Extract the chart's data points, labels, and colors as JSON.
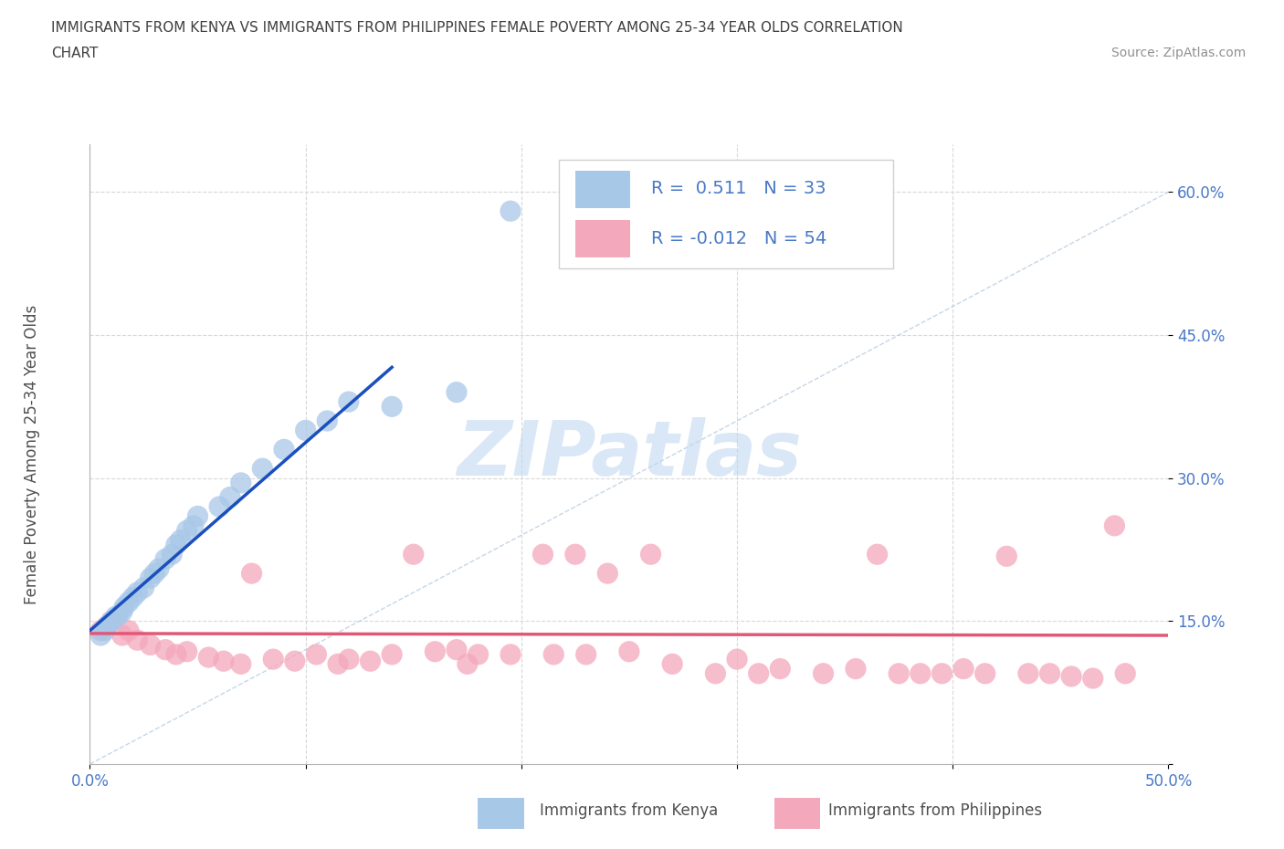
{
  "title_line1": "IMMIGRANTS FROM KENYA VS IMMIGRANTS FROM PHILIPPINES FEMALE POVERTY AMONG 25-34 YEAR OLDS CORRELATION",
  "title_line2": "CHART",
  "source_text": "Source: ZipAtlas.com",
  "ylabel": "Female Poverty Among 25-34 Year Olds",
  "xlim": [
    0.0,
    0.5
  ],
  "ylim": [
    0.0,
    0.65
  ],
  "kenya_R": 0.511,
  "kenya_N": 33,
  "phil_R": -0.012,
  "phil_N": 54,
  "kenya_color": "#a8c8e8",
  "phil_color": "#f4a8bc",
  "kenya_line_color": "#1a4fbd",
  "phil_line_color": "#e05878",
  "diag_color": "#b8cce0",
  "watermark_color": "#c0d8f0",
  "background_color": "#ffffff",
  "grid_color": "#d8d8d8",
  "title_color": "#404040",
  "axis_color": "#505050",
  "tick_color": "#4878c8",
  "legend_box_color": "#d0d0d0",
  "kenya_x": [
    0.005,
    0.007,
    0.008,
    0.01,
    0.012,
    0.013,
    0.015,
    0.016,
    0.018,
    0.02,
    0.022,
    0.025,
    0.028,
    0.03,
    0.032,
    0.035,
    0.038,
    0.04,
    0.042,
    0.045,
    0.048,
    0.05,
    0.06,
    0.065,
    0.07,
    0.08,
    0.09,
    0.1,
    0.11,
    0.12,
    0.14,
    0.17,
    0.195
  ],
  "kenya_y": [
    0.135,
    0.14,
    0.145,
    0.15,
    0.155,
    0.155,
    0.16,
    0.165,
    0.17,
    0.175,
    0.18,
    0.185,
    0.195,
    0.2,
    0.205,
    0.215,
    0.22,
    0.23,
    0.235,
    0.245,
    0.25,
    0.26,
    0.27,
    0.28,
    0.295,
    0.31,
    0.33,
    0.35,
    0.36,
    0.38,
    0.375,
    0.39,
    0.58
  ],
  "phil_x": [
    0.005,
    0.008,
    0.01,
    0.015,
    0.018,
    0.022,
    0.028,
    0.035,
    0.04,
    0.045,
    0.055,
    0.062,
    0.07,
    0.075,
    0.085,
    0.095,
    0.105,
    0.115,
    0.12,
    0.13,
    0.14,
    0.15,
    0.16,
    0.17,
    0.175,
    0.18,
    0.195,
    0.21,
    0.215,
    0.225,
    0.23,
    0.24,
    0.25,
    0.26,
    0.27,
    0.29,
    0.3,
    0.31,
    0.32,
    0.34,
    0.355,
    0.365,
    0.375,
    0.385,
    0.395,
    0.405,
    0.415,
    0.425,
    0.435,
    0.445,
    0.455,
    0.465,
    0.475,
    0.48
  ],
  "phil_y": [
    0.14,
    0.145,
    0.15,
    0.135,
    0.14,
    0.13,
    0.125,
    0.12,
    0.115,
    0.118,
    0.112,
    0.108,
    0.105,
    0.2,
    0.11,
    0.108,
    0.115,
    0.105,
    0.11,
    0.108,
    0.115,
    0.22,
    0.118,
    0.12,
    0.105,
    0.115,
    0.115,
    0.22,
    0.115,
    0.22,
    0.115,
    0.2,
    0.118,
    0.22,
    0.105,
    0.095,
    0.11,
    0.095,
    0.1,
    0.095,
    0.1,
    0.22,
    0.095,
    0.095,
    0.095,
    0.1,
    0.095,
    0.218,
    0.095,
    0.095,
    0.092,
    0.09,
    0.25,
    0.095
  ]
}
